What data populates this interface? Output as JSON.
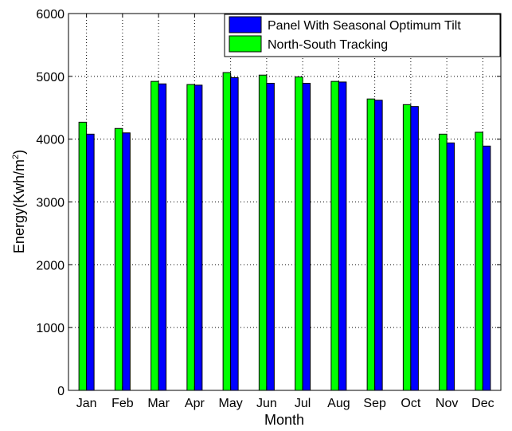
{
  "chart_data": {
    "type": "bar",
    "title": "",
    "xlabel": "Month",
    "ylabel_main": "Energy(Kwh/m",
    "ylabel_sup": "2",
    "ylabel_close": ")",
    "ylim": [
      0,
      6000
    ],
    "yticks": [
      0,
      1000,
      2000,
      3000,
      4000,
      5000,
      6000
    ],
    "grid": true,
    "legend_position": "top-right",
    "categories": [
      "Jan",
      "Feb",
      "Mar",
      "Apr",
      "May",
      "Jun",
      "Jul",
      "Aug",
      "Sep",
      "Oct",
      "Nov",
      "Dec"
    ],
    "series": [
      {
        "name": "North-South Tracking",
        "color": "#00ff00",
        "values": [
          4270,
          4170,
          4920,
          4870,
          5060,
          5020,
          4990,
          4920,
          4640,
          4550,
          4080,
          4110
        ]
      },
      {
        "name": "Panel With Seasonal Optimum Tilt",
        "color": "#0000ff",
        "values": [
          4080,
          4100,
          4880,
          4860,
          4980,
          4890,
          4890,
          4910,
          4620,
          4520,
          3940,
          3890
        ]
      }
    ],
    "legend_order": [
      1,
      0
    ]
  }
}
